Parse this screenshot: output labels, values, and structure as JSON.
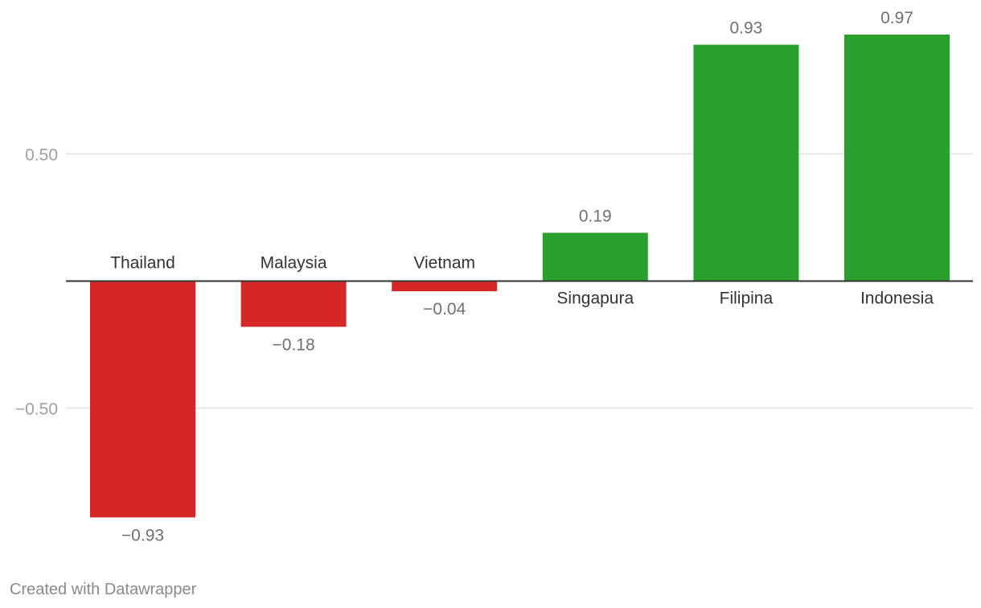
{
  "chart_data": {
    "type": "bar",
    "categories": [
      "Thailand",
      "Malaysia",
      "Vietnam",
      "Singapura",
      "Filipina",
      "Indonesia"
    ],
    "values": [
      -0.93,
      -0.18,
      -0.04,
      0.19,
      0.93,
      0.97
    ],
    "value_labels": [
      "−0.93",
      "−0.18",
      "−0.04",
      "0.19",
      "0.93",
      "0.97"
    ],
    "y_ticks": [
      0.5,
      -0.5
    ],
    "y_tick_labels": [
      "0.50",
      "−0.50"
    ],
    "ylim": [
      -1.05,
      1.1
    ],
    "grid": true,
    "colors": {
      "positive": "#2ca02c",
      "negative": "#d62728",
      "category_label": "#333333",
      "value_label": "#707070",
      "tick_label": "#a0a0a0",
      "gridline": "#e0e0e0",
      "zero_line": "#333333"
    }
  },
  "footer": {
    "credit": "Created with Datawrapper"
  }
}
